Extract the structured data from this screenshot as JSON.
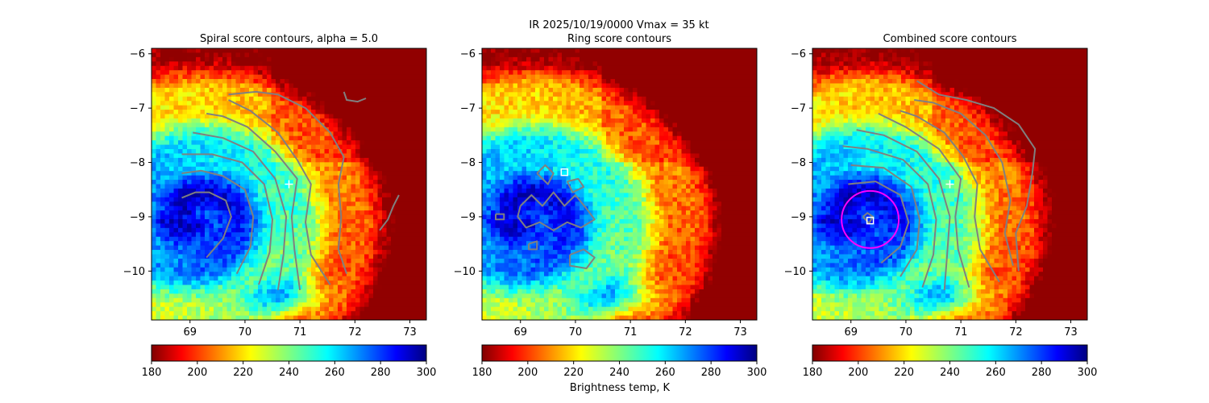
{
  "figure": {
    "suptitle_line1": "IR  2025/10/19/0000    Vmax = 35 kt",
    "colorbar_label": "Brightness temp, K"
  },
  "chart_data": [
    {
      "type": "heatmap",
      "title": "Spiral score contours, alpha =  5.0",
      "xlim": [
        68.3,
        73.3
      ],
      "ylim": [
        -10.9,
        -5.9
      ],
      "xticks": [
        "69",
        "70",
        "71",
        "72",
        "73"
      ],
      "yticks": [
        "−6",
        "−7",
        "−8",
        "−9",
        "−10"
      ],
      "colormap": "jet",
      "colorbar": {
        "range": [
          180,
          300
        ],
        "ticks": [
          "180",
          "200",
          "220",
          "240",
          "260",
          "280",
          "300"
        ]
      },
      "contour_color": "#808080",
      "contours": [
        [
          [
            69.3,
            -9.75
          ],
          [
            69.6,
            -9.4
          ],
          [
            69.75,
            -9.0
          ],
          [
            69.65,
            -8.7
          ],
          [
            69.35,
            -8.55
          ],
          [
            69.1,
            -8.55
          ],
          [
            68.85,
            -8.65
          ]
        ],
        [
          [
            69.85,
            -10.05
          ],
          [
            70.1,
            -9.55
          ],
          [
            70.15,
            -9.0
          ],
          [
            70.0,
            -8.5
          ],
          [
            69.6,
            -8.25
          ],
          [
            69.2,
            -8.15
          ],
          [
            68.85,
            -8.2
          ]
        ],
        [
          [
            70.25,
            -10.25
          ],
          [
            70.45,
            -9.65
          ],
          [
            70.5,
            -9.05
          ],
          [
            70.35,
            -8.4
          ],
          [
            69.95,
            -8.0
          ],
          [
            69.4,
            -7.85
          ],
          [
            68.85,
            -7.85
          ]
        ],
        [
          [
            70.6,
            -10.35
          ],
          [
            70.7,
            -9.7
          ],
          [
            70.75,
            -9.0
          ],
          [
            70.55,
            -8.3
          ],
          [
            70.15,
            -7.8
          ],
          [
            69.6,
            -7.55
          ],
          [
            69.05,
            -7.45
          ]
        ],
        [
          [
            71.0,
            -10.35
          ],
          [
            70.9,
            -9.6
          ],
          [
            70.85,
            -9.0
          ],
          [
            70.95,
            -8.3
          ],
          [
            70.55,
            -7.8
          ],
          [
            70.05,
            -7.35
          ],
          [
            69.6,
            -7.15
          ],
          [
            69.3,
            -7.1
          ]
        ],
        [
          [
            71.55,
            -10.25
          ],
          [
            71.2,
            -9.7
          ],
          [
            71.1,
            -9.1
          ],
          [
            71.2,
            -8.4
          ],
          [
            70.95,
            -7.95
          ],
          [
            70.6,
            -7.45
          ],
          [
            70.1,
            -7.05
          ],
          [
            69.7,
            -6.85
          ]
        ],
        [
          [
            71.85,
            -10.05
          ],
          [
            71.7,
            -9.6
          ],
          [
            71.75,
            -9.0
          ],
          [
            71.7,
            -8.4
          ],
          [
            71.8,
            -7.9
          ],
          [
            71.55,
            -7.45
          ],
          [
            71.1,
            -7.0
          ],
          [
            70.6,
            -6.75
          ],
          [
            70.2,
            -6.7
          ],
          [
            69.7,
            -6.75
          ]
        ],
        [
          [
            71.8,
            -6.7
          ],
          [
            71.85,
            -6.85
          ],
          [
            72.05,
            -6.88
          ],
          [
            72.2,
            -6.82
          ]
        ],
        [
          [
            72.45,
            -9.25
          ],
          [
            72.6,
            -9.05
          ],
          [
            72.7,
            -8.8
          ],
          [
            72.8,
            -8.6
          ]
        ]
      ],
      "markers": [
        {
          "shape": "plus",
          "color": "#ffffff",
          "lon": 70.8,
          "lat": -8.4
        }
      ]
    },
    {
      "type": "heatmap",
      "title": "Ring score contours",
      "xlim": [
        68.3,
        73.3
      ],
      "ylim": [
        -10.9,
        -5.9
      ],
      "xticks": [
        "69",
        "70",
        "71",
        "72",
        "73"
      ],
      "yticks": [
        "−6",
        "−7",
        "−8",
        "−9",
        "−10"
      ],
      "colormap": "jet",
      "colorbar": {
        "range": [
          180,
          300
        ],
        "ticks": [
          "180",
          "200",
          "220",
          "240",
          "260",
          "280",
          "300"
        ]
      },
      "contour_color": "#808080",
      "contours": [
        [
          [
            69.0,
            -8.8
          ],
          [
            69.2,
            -8.6
          ],
          [
            69.4,
            -8.8
          ],
          [
            69.6,
            -8.55
          ],
          [
            69.8,
            -8.8
          ],
          [
            70.0,
            -8.6
          ],
          [
            70.2,
            -8.85
          ],
          [
            70.35,
            -9.05
          ],
          [
            70.1,
            -9.2
          ],
          [
            69.85,
            -9.1
          ],
          [
            69.6,
            -9.25
          ],
          [
            69.35,
            -9.1
          ],
          [
            69.1,
            -9.2
          ],
          [
            68.95,
            -9.0
          ],
          [
            69.0,
            -8.8
          ]
        ],
        [
          [
            69.3,
            -8.2
          ],
          [
            69.45,
            -8.05
          ],
          [
            69.6,
            -8.2
          ],
          [
            69.5,
            -8.4
          ],
          [
            69.3,
            -8.2
          ]
        ],
        [
          [
            69.85,
            -8.35
          ],
          [
            70.05,
            -8.3
          ],
          [
            70.15,
            -8.45
          ],
          [
            69.95,
            -8.55
          ],
          [
            69.85,
            -8.35
          ]
        ],
        [
          [
            69.9,
            -9.7
          ],
          [
            70.15,
            -9.6
          ],
          [
            70.35,
            -9.75
          ],
          [
            70.2,
            -9.95
          ],
          [
            69.9,
            -9.9
          ],
          [
            69.9,
            -9.7
          ]
        ],
        [
          [
            68.55,
            -8.95
          ],
          [
            68.7,
            -8.95
          ],
          [
            68.7,
            -9.05
          ],
          [
            68.55,
            -9.05
          ],
          [
            68.55,
            -8.95
          ]
        ],
        [
          [
            69.15,
            -9.5
          ],
          [
            69.3,
            -9.45
          ],
          [
            69.3,
            -9.6
          ],
          [
            69.15,
            -9.6
          ],
          [
            69.15,
            -9.5
          ]
        ]
      ],
      "markers": [
        {
          "shape": "square",
          "color": "#ffffff",
          "lon": 69.8,
          "lat": -8.18
        }
      ]
    },
    {
      "type": "heatmap",
      "title": "Combined score contours",
      "xlim": [
        68.3,
        73.3
      ],
      "ylim": [
        -10.9,
        -5.9
      ],
      "xticks": [
        "69",
        "70",
        "71",
        "72",
        "73"
      ],
      "yticks": [
        "−6",
        "−7",
        "−8",
        "−9",
        "−10"
      ],
      "colormap": "jet",
      "colorbar": {
        "range": [
          180,
          300
        ],
        "ticks": [
          "180",
          "200",
          "220",
          "240",
          "260",
          "280",
          "300"
        ]
      },
      "contour_color": "#808080",
      "contours": [
        [
          [
            69.55,
            -9.85
          ],
          [
            69.9,
            -9.55
          ],
          [
            70.05,
            -9.1
          ],
          [
            69.9,
            -8.6
          ],
          [
            69.45,
            -8.35
          ],
          [
            68.95,
            -8.4
          ]
        ],
        [
          [
            69.9,
            -10.1
          ],
          [
            70.2,
            -9.6
          ],
          [
            70.25,
            -9.05
          ],
          [
            70.1,
            -8.45
          ],
          [
            69.6,
            -8.1
          ],
          [
            69.0,
            -8.05
          ]
        ],
        [
          [
            70.3,
            -10.3
          ],
          [
            70.5,
            -9.7
          ],
          [
            70.55,
            -9.05
          ],
          [
            70.4,
            -8.4
          ],
          [
            69.95,
            -7.95
          ],
          [
            69.3,
            -7.75
          ],
          [
            68.85,
            -7.7
          ]
        ],
        [
          [
            70.7,
            -10.35
          ],
          [
            70.75,
            -9.7
          ],
          [
            70.8,
            -9.0
          ],
          [
            70.6,
            -8.3
          ],
          [
            70.2,
            -7.8
          ],
          [
            69.6,
            -7.5
          ],
          [
            69.1,
            -7.4
          ]
        ],
        [
          [
            71.15,
            -10.3
          ],
          [
            70.95,
            -9.6
          ],
          [
            70.9,
            -9.0
          ],
          [
            71.0,
            -8.3
          ],
          [
            70.6,
            -7.75
          ],
          [
            70.0,
            -7.35
          ],
          [
            69.5,
            -7.1
          ]
        ],
        [
          [
            71.7,
            -10.2
          ],
          [
            71.35,
            -9.6
          ],
          [
            71.25,
            -9.0
          ],
          [
            71.3,
            -8.4
          ],
          [
            71.05,
            -7.9
          ],
          [
            70.7,
            -7.45
          ],
          [
            70.2,
            -7.15
          ],
          [
            69.9,
            -7.05
          ]
        ],
        [
          [
            71.95,
            -9.9
          ],
          [
            71.8,
            -9.3
          ],
          [
            71.9,
            -8.7
          ],
          [
            71.75,
            -8.0
          ],
          [
            71.45,
            -7.5
          ],
          [
            71.0,
            -7.1
          ],
          [
            70.5,
            -6.9
          ],
          [
            70.15,
            -6.85
          ]
        ],
        [
          [
            72.05,
            -10.0
          ],
          [
            72.0,
            -9.3
          ],
          [
            72.2,
            -8.8
          ],
          [
            72.3,
            -8.2
          ],
          [
            72.35,
            -7.75
          ],
          [
            72.05,
            -7.3
          ],
          [
            71.6,
            -7.0
          ],
          [
            71.1,
            -6.85
          ],
          [
            70.6,
            -6.75
          ],
          [
            70.2,
            -6.5
          ]
        ],
        [
          [
            69.22,
            -9.0
          ],
          [
            69.3,
            -8.93
          ],
          [
            69.4,
            -9.0
          ],
          [
            69.33,
            -9.12
          ],
          [
            69.22,
            -9.0
          ]
        ]
      ],
      "rings": [
        {
          "color": "#ff00ff",
          "lon": 69.35,
          "lat": -9.05,
          "radius_deg": 0.52
        }
      ],
      "markers": [
        {
          "shape": "plus",
          "color": "#ffffff",
          "lon": 70.8,
          "lat": -8.4
        },
        {
          "shape": "square",
          "color": "#ffffff",
          "lon": 69.35,
          "lat": -9.07
        }
      ]
    }
  ]
}
